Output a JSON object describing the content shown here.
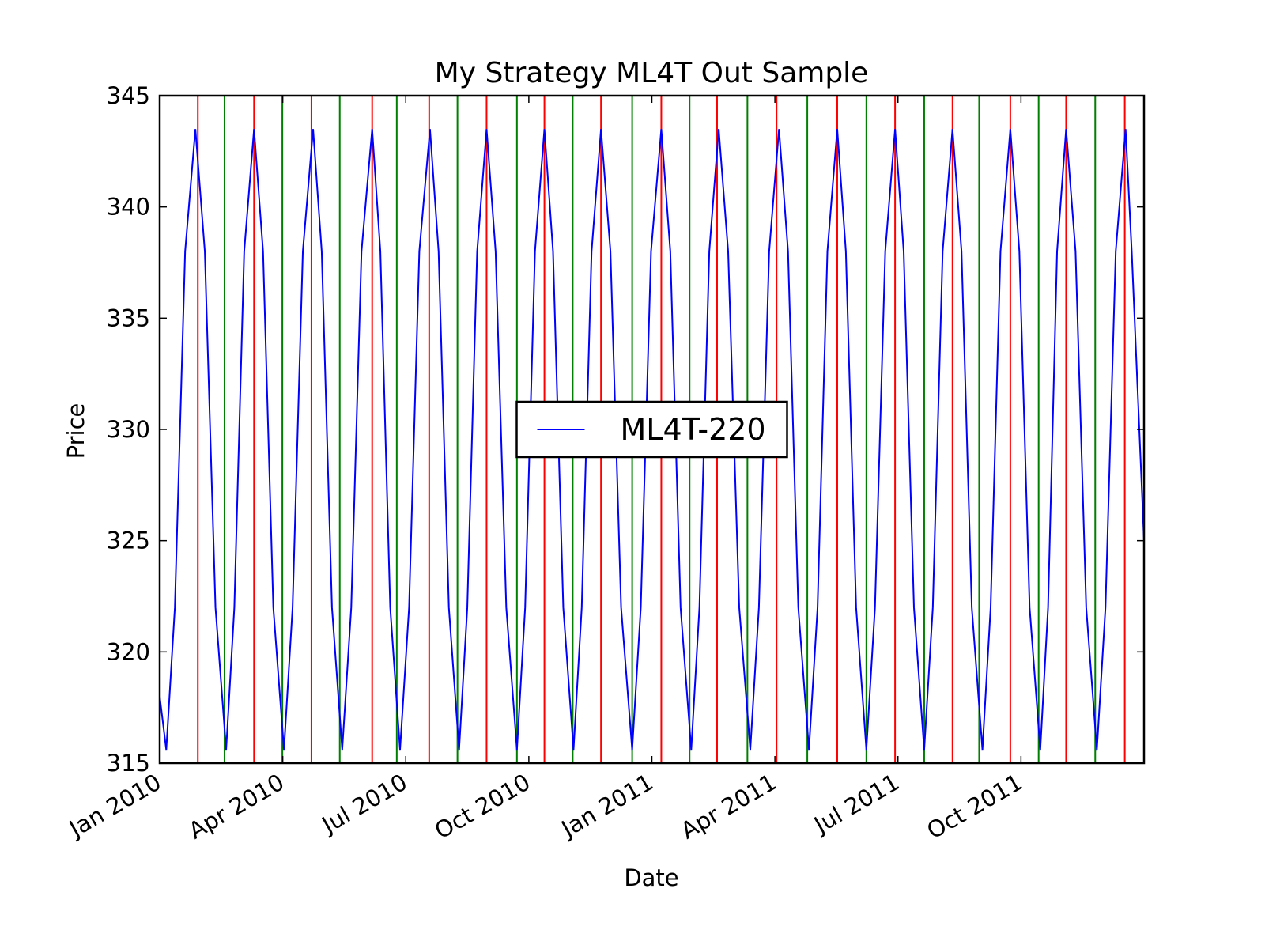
{
  "chart_data": {
    "type": "line",
    "title": "My Strategy ML4T Out Sample",
    "x_label": "Date",
    "y_label": "Price",
    "xlim": [
      0,
      24
    ],
    "xticks": [
      {
        "value": 0,
        "label": "Jan 2010"
      },
      {
        "value": 3,
        "label": "Apr 2010"
      },
      {
        "value": 6,
        "label": "Jul 2010"
      },
      {
        "value": 9,
        "label": "Oct 2010"
      },
      {
        "value": 12,
        "label": "Jan 2011"
      },
      {
        "value": 15,
        "label": "Apr 2011"
      },
      {
        "value": 18,
        "label": "Jul 2011"
      },
      {
        "value": 21,
        "label": "Oct 2011"
      }
    ],
    "ylim": [
      315,
      345
    ],
    "yticks": [
      315,
      320,
      325,
      330,
      335,
      340,
      345
    ],
    "legend": "center",
    "series": [
      {
        "name": "ML4T-220",
        "color": "#0000ff",
        "x": [
          0,
          0.16,
          0.37,
          0.62,
          0.87,
          1.1,
          1.36,
          1.62,
          1.82,
          2.06,
          2.3,
          2.52,
          2.77,
          3.03,
          3.24,
          3.49,
          3.74,
          3.95,
          4.2,
          4.45,
          4.67,
          4.92,
          5.18,
          5.38,
          5.62,
          5.86,
          6.08,
          6.33,
          6.59,
          6.8,
          7.05,
          7.3,
          7.5,
          7.74,
          7.97,
          8.19,
          8.45,
          8.71,
          8.91,
          9.15,
          9.38,
          9.59,
          9.84,
          10.09,
          10.29,
          10.53,
          10.76,
          10.99,
          11.25,
          11.52,
          11.73,
          11.98,
          12.23,
          12.45,
          12.7,
          12.96,
          13.16,
          13.4,
          13.63,
          13.86,
          14.13,
          14.4,
          14.61,
          14.86,
          15.1,
          15.32,
          15.57,
          15.83,
          16.04,
          16.28,
          16.52,
          16.73,
          16.98,
          17.23,
          17.44,
          17.69,
          17.93,
          18.14,
          18.39,
          18.64,
          18.85,
          19.09,
          19.33,
          19.55,
          19.8,
          20.06,
          20.26,
          20.5,
          20.74,
          20.96,
          21.21,
          21.47,
          21.66,
          21.88,
          22.1,
          22.33,
          22.59,
          22.85,
          23.06,
          23.31,
          23.55,
          23.7,
          24.0
        ],
        "values": [
          318,
          315.6,
          322,
          338,
          343.5,
          338,
          322,
          315.6,
          322,
          338,
          343.5,
          338,
          322,
          315.6,
          322,
          338,
          343.5,
          338,
          322,
          315.6,
          322,
          338,
          343.5,
          338,
          322,
          315.6,
          322,
          338,
          343.5,
          338,
          322,
          315.6,
          322,
          338,
          343.5,
          338,
          322,
          315.6,
          322,
          338,
          343.5,
          338,
          322,
          315.6,
          322,
          338,
          343.5,
          338,
          322,
          315.6,
          322,
          338,
          343.5,
          338,
          322,
          315.6,
          322,
          338,
          343.5,
          338,
          322,
          315.6,
          322,
          338,
          343.5,
          338,
          322,
          315.6,
          322,
          338,
          343.5,
          338,
          322,
          315.6,
          322,
          338,
          343.5,
          338,
          322,
          315.6,
          322,
          338,
          343.5,
          338,
          322,
          315.6,
          322,
          338,
          343.5,
          338,
          322,
          315.6,
          322,
          338,
          343.5,
          338,
          322,
          315.6,
          322,
          338,
          343.5,
          338,
          325
        ]
      }
    ],
    "vlines": [
      {
        "color": "#ff0000",
        "x": [
          0.93,
          2.3,
          3.7,
          5.18,
          6.57,
          7.97,
          9.38,
          10.76,
          12.23,
          13.59,
          15.04,
          16.52,
          17.93,
          19.33,
          20.74,
          22.1,
          23.53
        ]
      },
      {
        "color": "#008000",
        "x": [
          1.58,
          2.99,
          4.39,
          5.78,
          7.26,
          8.71,
          10.07,
          11.52,
          12.92,
          14.33,
          15.79,
          17.23,
          18.64,
          19.98,
          21.43,
          22.81
        ]
      }
    ]
  }
}
